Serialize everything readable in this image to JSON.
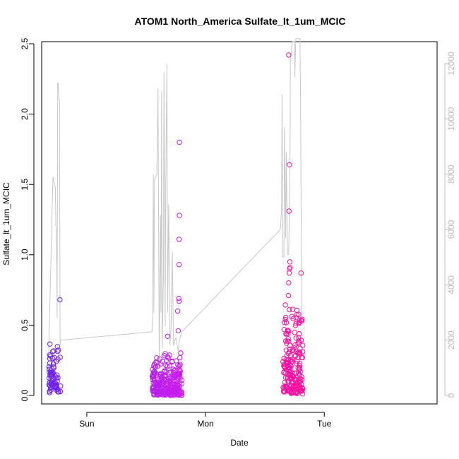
{
  "chart_data": {
    "type": "scatter",
    "title": "ATOM1 North_America Sulfate_lt_1um_MCIC",
    "xlabel": "Date",
    "ylabel": "Sulfate_lt_1um_MCIC",
    "ylim": [
      0,
      2.5
    ],
    "y_ticks": [
      "0.0",
      "0.5",
      "1.0",
      "1.5",
      "2.0",
      "2.5"
    ],
    "y2lim": [
      0,
      12000
    ],
    "y2_ticks": [
      "0",
      "2000",
      "4000",
      "6000",
      "8000",
      "10000",
      "12000"
    ],
    "x_ticks": [
      {
        "day": 1.0,
        "label": "Sun"
      },
      {
        "day": 2.0,
        "label": "Mon"
      },
      {
        "day": 3.0,
        "label": "Tue"
      }
    ],
    "xlim": [
      0.62,
      3.95
    ],
    "grid": false,
    "colors": {
      "start": "#6a1ff0",
      "mid": "#c81cee",
      "end": "#ff0f9a",
      "altitude_line": "#c8c8c8",
      "right_axis": "#bdbdbd"
    },
    "series": [
      {
        "marker": "circle-open",
        "segments": [
          {
            "x_start": 0.68,
            "x_end": 0.78,
            "y_min": 0.02,
            "y_max": 0.42,
            "count": 70,
            "seed": 11,
            "extras": [
              [
                0.774,
                0.68
              ]
            ]
          },
          {
            "x_start": 1.55,
            "x_end": 1.8,
            "y_min": 0.0,
            "y_max": 0.32,
            "count": 260,
            "seed": 23,
            "extras": [
              [
                1.78,
                1.8
              ],
              [
                1.78,
                1.28
              ],
              [
                1.777,
                1.11
              ],
              [
                1.777,
                0.93
              ],
              [
                1.775,
                0.69
              ],
              [
                1.778,
                0.67
              ],
              [
                1.68,
                0.42
              ],
              [
                1.765,
                0.6
              ],
              [
                1.77,
                0.46
              ]
            ]
          },
          {
            "x_start": 2.65,
            "x_end": 2.82,
            "y_min": 0.01,
            "y_max": 0.72,
            "count": 200,
            "seed": 37,
            "extras": [
              [
                2.7,
                2.42
              ],
              [
                2.706,
                1.64
              ],
              [
                2.703,
                1.31
              ],
              [
                2.71,
                0.95
              ],
              [
                2.712,
                0.91
              ],
              [
                2.708,
                0.9
              ],
              [
                2.705,
                0.87
              ],
              [
                2.805,
                0.87
              ],
              [
                2.7,
                0.8
              ],
              [
                2.698,
                0.71
              ]
            ]
          }
        ]
      },
      {
        "type": "line",
        "axis": "right",
        "points": [
          [
            0.68,
            0
          ],
          [
            0.68,
            1700
          ],
          [
            0.715,
            7900
          ],
          [
            0.72,
            7800
          ],
          [
            0.73,
            7600
          ],
          [
            0.735,
            7500
          ],
          [
            0.74,
            6100
          ],
          [
            0.745,
            5900
          ],
          [
            0.75,
            2800
          ],
          [
            0.755,
            11300
          ],
          [
            0.76,
            11300
          ],
          [
            0.765,
            10700
          ],
          [
            0.77,
            10700
          ],
          [
            0.775,
            1800
          ],
          [
            0.78,
            2000
          ],
          [
            1.55,
            2300
          ],
          [
            1.555,
            3000
          ],
          [
            1.56,
            8000
          ],
          [
            1.565,
            3000
          ],
          [
            1.57,
            7800
          ],
          [
            1.58,
            7900
          ],
          [
            1.59,
            8000
          ],
          [
            1.6,
            11100
          ],
          [
            1.61,
            1000
          ],
          [
            1.62,
            6500
          ],
          [
            1.625,
            3000
          ],
          [
            1.63,
            11000
          ],
          [
            1.635,
            1700
          ],
          [
            1.645,
            4200
          ],
          [
            1.65,
            11700
          ],
          [
            1.66,
            2500
          ],
          [
            1.665,
            7500
          ],
          [
            1.675,
            12000
          ],
          [
            1.68,
            3000
          ],
          [
            1.69,
            6900
          ],
          [
            1.7,
            1800
          ],
          [
            1.71,
            2500
          ],
          [
            1.72,
            5200
          ],
          [
            1.73,
            1800
          ],
          [
            1.75,
            2100
          ],
          [
            1.77,
            1600
          ],
          [
            1.78,
            2000
          ],
          [
            1.8,
            2300
          ],
          [
            2.63,
            6000
          ],
          [
            2.64,
            6700
          ],
          [
            2.645,
            10900
          ],
          [
            2.65,
            5000
          ],
          [
            2.66,
            5000
          ],
          [
            2.665,
            9700
          ],
          [
            2.675,
            5700
          ],
          [
            2.68,
            8800
          ],
          [
            2.69,
            5100
          ],
          [
            2.7,
            5100
          ],
          [
            2.71,
            7500
          ],
          [
            2.715,
            12300
          ],
          [
            2.72,
            12300
          ],
          [
            2.73,
            12800
          ],
          [
            2.75,
            12800
          ],
          [
            2.752,
            11500
          ],
          [
            2.76,
            12900
          ],
          [
            2.795,
            12900
          ],
          [
            2.8,
            10800
          ],
          [
            2.81,
            2500
          ]
        ]
      }
    ]
  }
}
